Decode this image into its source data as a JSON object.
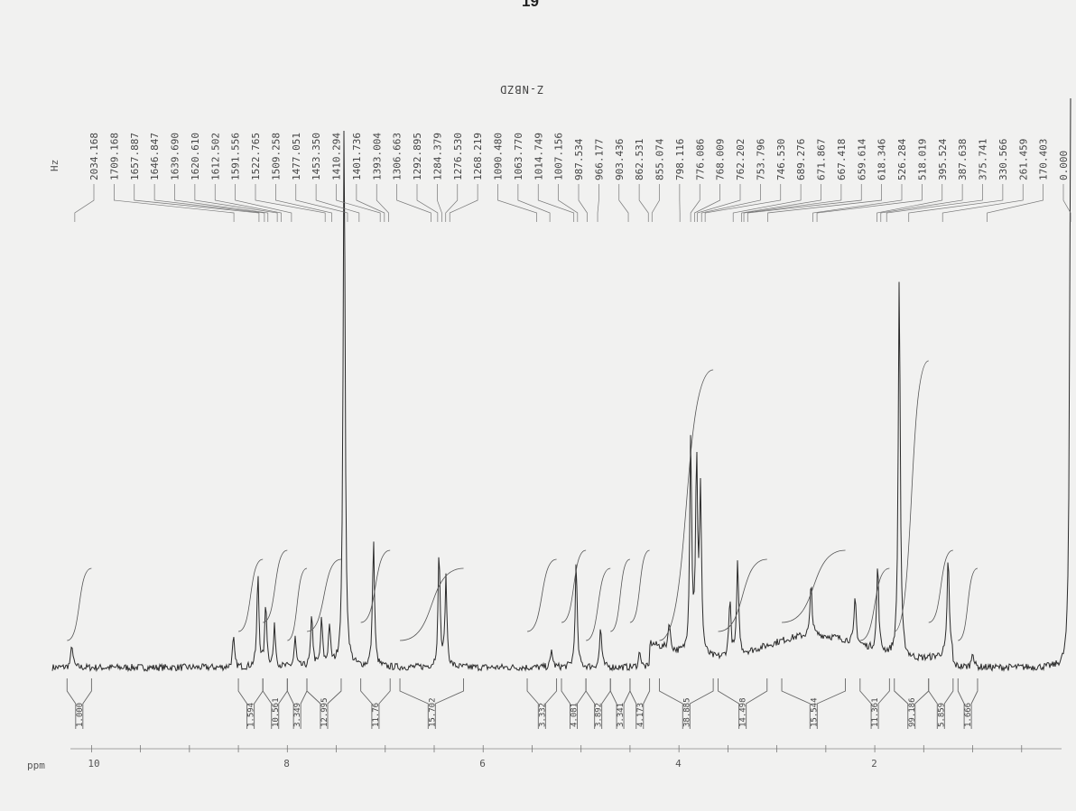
{
  "page_number": "19",
  "chart_data": {
    "type": "line",
    "sample_name": "Z-NBZD",
    "peak_list_unit": "Hz",
    "peak_list_hz": [
      "2034.168",
      "1709.168",
      "1657.887",
      "1646.847",
      "1639.690",
      "1620.610",
      "1612.502",
      "1591.556",
      "1522.765",
      "1509.258",
      "1477.051",
      "1453.350",
      "1410.294",
      "1401.736",
      "1393.004",
      "1306.663",
      "1292.895",
      "1284.379",
      "1276.530",
      "1268.219",
      "1090.480",
      "1063.770",
      "1014.749",
      "1007.156",
      "987.534",
      "966.177",
      "903.436",
      "862.531",
      "855.074",
      "798.116",
      "776.086",
      "768.009",
      "762.202",
      "753.796",
      "746.530",
      "689.276",
      "671.867",
      "667.418",
      "659.614",
      "618.346",
      "526.284",
      "518.019",
      "395.524",
      "387.638",
      "375.741",
      "330.566",
      "261.459",
      "170.403",
      "0.000"
    ],
    "xlabel": "ppm",
    "x_tick_labels": [
      "10",
      "8",
      "6",
      "4",
      "2"
    ],
    "x_ticks_ppm": [
      10,
      8,
      6,
      4,
      2
    ],
    "xlim_ppm": [
      10.4,
      0
    ],
    "integral_values": [
      "1.000",
      "1.594",
      "10.561",
      "3.349",
      "12.995",
      "11.76",
      "15.702",
      "3.332",
      "4.081",
      "3.892",
      "3.341",
      "4.173",
      "38.885",
      "14.498",
      "15.544",
      "11.361",
      "99.186",
      "5.859",
      "1.666"
    ],
    "integration_regions_ppm": [
      [
        10.25,
        10.0
      ],
      [
        8.5,
        8.25
      ],
      [
        8.25,
        8.0
      ],
      [
        8.0,
        7.8
      ],
      [
        7.8,
        7.45
      ],
      [
        7.25,
        6.95
      ],
      [
        6.85,
        6.2
      ],
      [
        5.55,
        5.25
      ],
      [
        5.2,
        4.95
      ],
      [
        4.95,
        4.7
      ],
      [
        4.7,
        4.5
      ],
      [
        4.5,
        4.3
      ],
      [
        4.2,
        3.65
      ],
      [
        3.6,
        3.1
      ],
      [
        2.95,
        2.3
      ],
      [
        2.15,
        1.85
      ],
      [
        1.8,
        1.45
      ],
      [
        1.45,
        1.2
      ],
      [
        1.15,
        0.95
      ]
    ],
    "peaks_ppm": [
      {
        "ppm": 10.2,
        "height": 0.04
      },
      {
        "ppm": 8.55,
        "height": 0.05
      },
      {
        "ppm": 8.3,
        "height": 0.16
      },
      {
        "ppm": 8.22,
        "height": 0.11
      },
      {
        "ppm": 8.13,
        "height": 0.07
      },
      {
        "ppm": 7.92,
        "height": 0.05
      },
      {
        "ppm": 7.75,
        "height": 0.09
      },
      {
        "ppm": 7.65,
        "height": 0.08
      },
      {
        "ppm": 7.57,
        "height": 0.07
      },
      {
        "ppm": 7.42,
        "height": 0.95
      },
      {
        "ppm": 7.12,
        "height": 0.22
      },
      {
        "ppm": 6.45,
        "height": 0.2
      },
      {
        "ppm": 6.38,
        "height": 0.15
      },
      {
        "ppm": 5.3,
        "height": 0.03
      },
      {
        "ppm": 5.05,
        "height": 0.18
      },
      {
        "ppm": 4.8,
        "height": 0.07
      },
      {
        "ppm": 4.4,
        "height": 0.03
      },
      {
        "ppm": 4.1,
        "height": 0.05
      },
      {
        "ppm": 3.88,
        "height": 0.37
      },
      {
        "ppm": 3.82,
        "height": 0.33
      },
      {
        "ppm": 3.78,
        "height": 0.28
      },
      {
        "ppm": 3.48,
        "height": 0.1
      },
      {
        "ppm": 3.4,
        "height": 0.16
      },
      {
        "ppm": 2.65,
        "height": 0.09
      },
      {
        "ppm": 2.2,
        "height": 0.08
      },
      {
        "ppm": 1.97,
        "height": 0.15
      },
      {
        "ppm": 1.75,
        "height": 0.66
      },
      {
        "ppm": 1.25,
        "height": 0.17
      },
      {
        "ppm": 1.0,
        "height": 0.03
      },
      {
        "ppm": 0.0,
        "height": 0.98
      }
    ],
    "grid": false
  }
}
